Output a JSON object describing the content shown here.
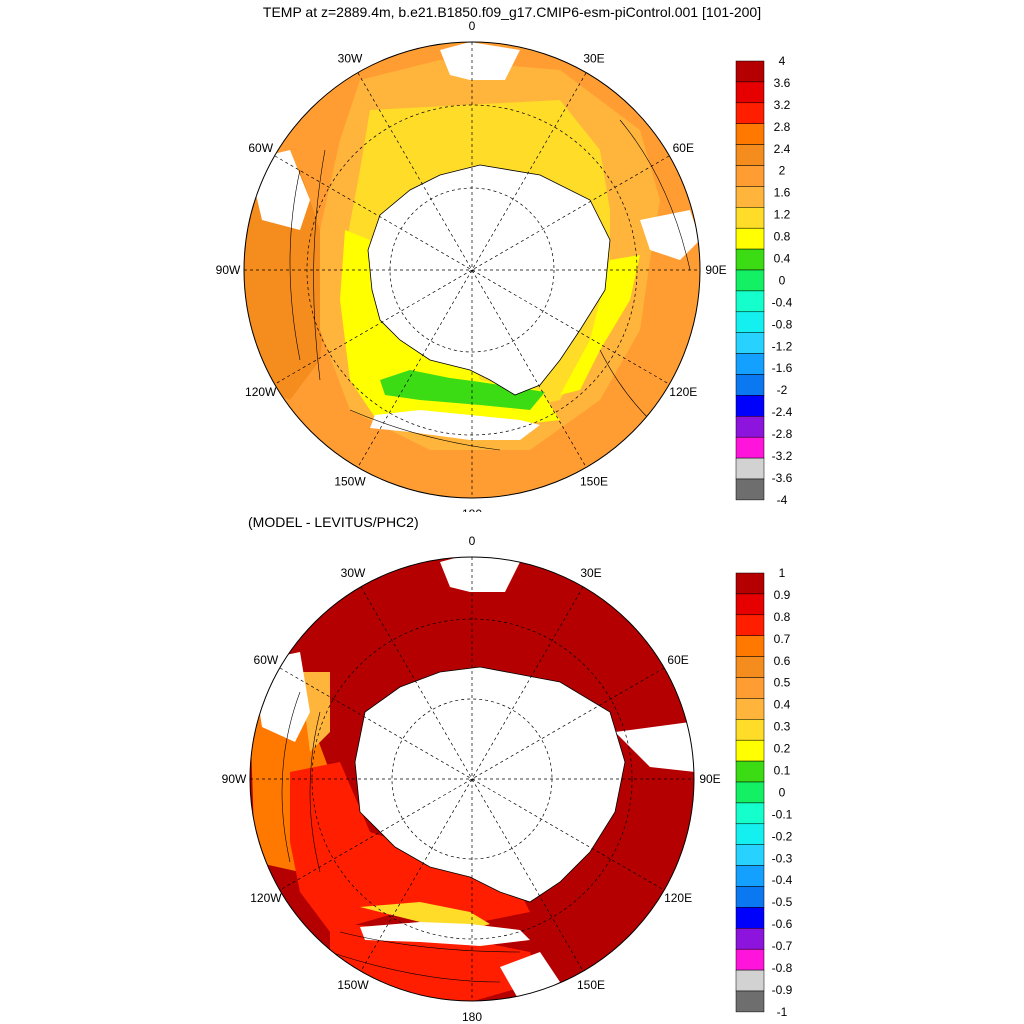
{
  "title": "TEMP at z=2889.4m, b.e21.B1850.f09_g17.CMIP6-esm-piControl.001 [101-200]",
  "subtitle": "(MODEL - LEVITUS/PHC2)",
  "longitude_labels": [
    "0",
    "30E",
    "60E",
    "90E",
    "120E",
    "150E",
    "180",
    "150W",
    "120W",
    "90W",
    "60W",
    "30W"
  ],
  "top_colorbar": {
    "labels": [
      "4",
      "3.6",
      "3.2",
      "2.8",
      "2.4",
      "2",
      "1.6",
      "1.2",
      "0.8",
      "0.4",
      "0",
      "-0.4",
      "-0.8",
      "-1.2",
      "-1.6",
      "-2",
      "-2.4",
      "-2.8",
      "-3.2",
      "-3.6",
      "-4"
    ],
    "colors": [
      "#b40000",
      "#e60000",
      "#ff1e00",
      "#ff7800",
      "#f58c1e",
      "#ff9d32",
      "#ffb43c",
      "#ffdc28",
      "#ffff00",
      "#3cdc14",
      "#14f064",
      "#14ffcc",
      "#14f0f0",
      "#28d2ff",
      "#14a0ff",
      "#0a78f0",
      "#0000ff",
      "#8c14dc",
      "#ff14dc",
      "#d2d2d2",
      "#6e6e6e"
    ]
  },
  "bottom_colorbar": {
    "labels": [
      "1",
      "0.9",
      "0.8",
      "0.7",
      "0.6",
      "0.5",
      "0.4",
      "0.3",
      "0.2",
      "0.1",
      "0",
      "-0.1",
      "-0.2",
      "-0.3",
      "-0.4",
      "-0.5",
      "-0.6",
      "-0.7",
      "-0.8",
      "-0.9",
      "-1"
    ],
    "colors": [
      "#b40000",
      "#e60000",
      "#ff1e00",
      "#ff7800",
      "#f58c1e",
      "#ff9d32",
      "#ffb43c",
      "#ffdc28",
      "#ffff00",
      "#3cdc14",
      "#14f064",
      "#14ffcc",
      "#14f0f0",
      "#28d2ff",
      "#14a0ff",
      "#0a78f0",
      "#0000ff",
      "#8c14dc",
      "#ff14dc",
      "#d2d2d2",
      "#6e6e6e"
    ]
  },
  "colors": {
    "land": "#ffffff",
    "ocean_orange": "#ff9d32",
    "ocean_lightorange": "#ffb43c",
    "ocean_yellow": "#ffdc28",
    "ocean_brightyellow": "#ffff00",
    "ocean_green": "#3cdc14",
    "diff_darkred": "#b40000",
    "diff_red": "#ff1e00",
    "diff_orange": "#ff7800"
  }
}
